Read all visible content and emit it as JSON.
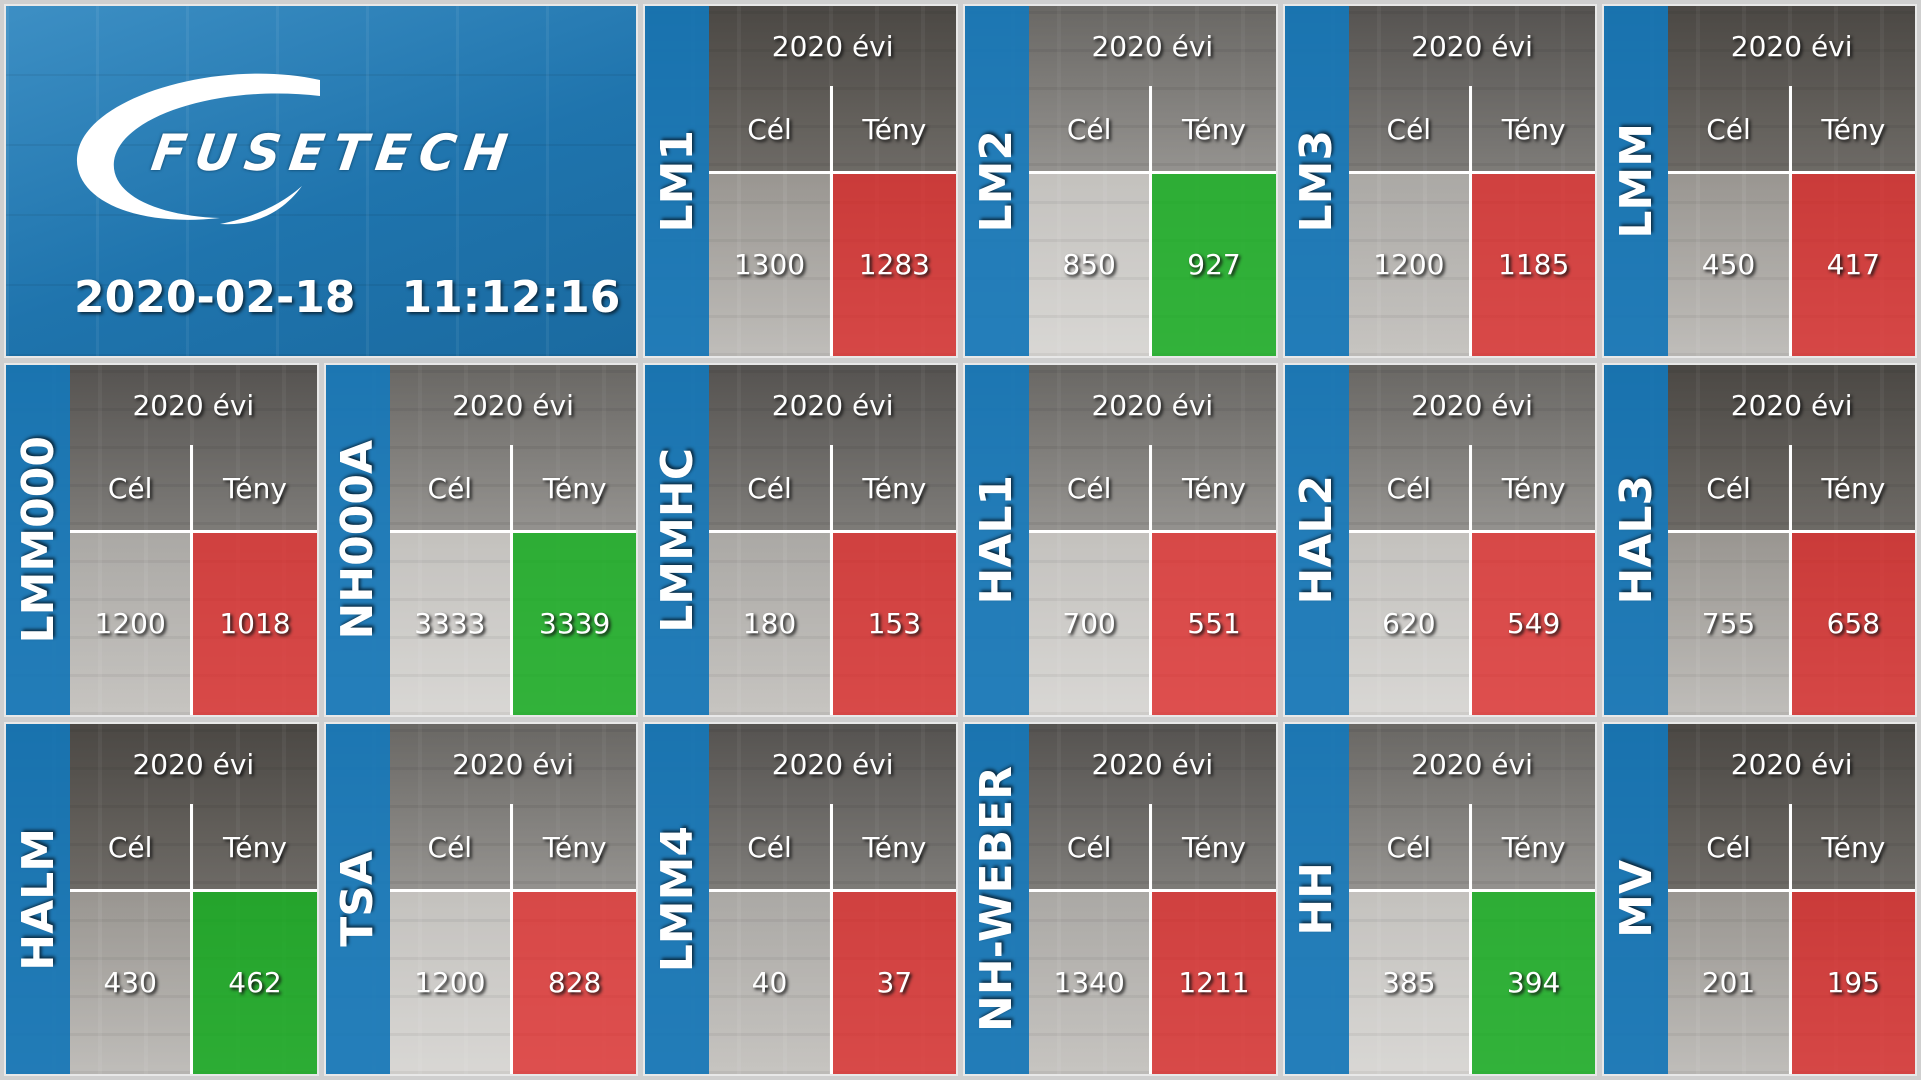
{
  "header": {
    "brand": "FUSETECH",
    "date": "2020-02-18",
    "time": "11:12:16"
  },
  "labels": {
    "year": "2020 évi",
    "target": "Cél",
    "actual": "Tény"
  },
  "colors": {
    "accent_blue": "#1576b7",
    "above_target_green": "#14aa1e",
    "below_target_red": "#de2828"
  },
  "lines": [
    {
      "name": "LM1",
      "target": "1300",
      "actual": "1283",
      "status": "red"
    },
    {
      "name": "LM2",
      "target": "850",
      "actual": "927",
      "status": "green"
    },
    {
      "name": "LM3",
      "target": "1200",
      "actual": "1185",
      "status": "red"
    },
    {
      "name": "LMM",
      "target": "450",
      "actual": "417",
      "status": "red"
    },
    {
      "name": "LMM000",
      "target": "1200",
      "actual": "1018",
      "status": "red"
    },
    {
      "name": "NH000A",
      "target": "3333",
      "actual": "3339",
      "status": "green"
    },
    {
      "name": "LMMHC",
      "target": "180",
      "actual": "153",
      "status": "red"
    },
    {
      "name": "HAL1",
      "target": "700",
      "actual": "551",
      "status": "red"
    },
    {
      "name": "HAL2",
      "target": "620",
      "actual": "549",
      "status": "red"
    },
    {
      "name": "HAL3",
      "target": "755",
      "actual": "658",
      "status": "red"
    },
    {
      "name": "HALM",
      "target": "430",
      "actual": "462",
      "status": "green"
    },
    {
      "name": "TSA",
      "target": "1200",
      "actual": "828",
      "status": "red"
    },
    {
      "name": "LMM4",
      "target": "40",
      "actual": "37",
      "status": "red"
    },
    {
      "name": "NH-WEBER",
      "target": "1340",
      "actual": "1211",
      "status": "red"
    },
    {
      "name": "HH",
      "target": "385",
      "actual": "394",
      "status": "green"
    },
    {
      "name": "MV",
      "target": "201",
      "actual": "195",
      "status": "red"
    }
  ]
}
